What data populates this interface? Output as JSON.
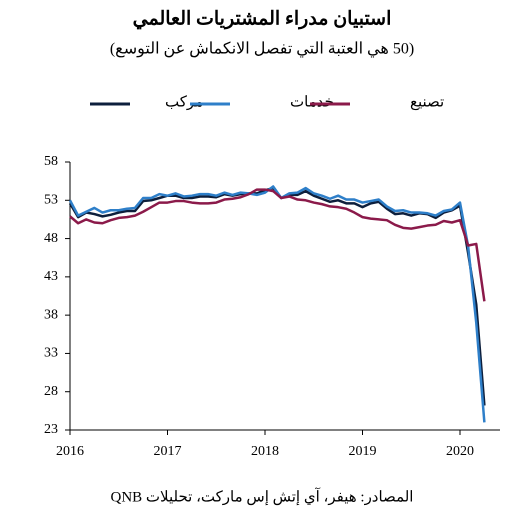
{
  "chart_data": {
    "type": "line",
    "title": "استبيان مدراء المشتريات العالمي",
    "subtitle": "(50 هي العتبة التي تفصل الانكماش عن التوسع)",
    "source": "المصادر: هيفر، آي إتش إس ماركت، تحليلات QNB",
    "categories": [
      "2016",
      null,
      null,
      null,
      null,
      null,
      null,
      null,
      null,
      null,
      null,
      null,
      "2017",
      null,
      null,
      null,
      null,
      null,
      null,
      null,
      null,
      null,
      null,
      null,
      "2018",
      null,
      null,
      null,
      null,
      null,
      null,
      null,
      null,
      null,
      null,
      null,
      "2019",
      null,
      null,
      null,
      null,
      null,
      null,
      null,
      null,
      null,
      null,
      null,
      "2020",
      null,
      null,
      null
    ],
    "series": [
      {
        "name": "مركب",
        "color": "#0d1f3c",
        "values": [
          52.6,
          50.8,
          51.4,
          51.2,
          50.9,
          51.1,
          51.4,
          51.6,
          51.6,
          52.9,
          53.0,
          53.3,
          53.6,
          53.6,
          53.3,
          53.3,
          53.5,
          53.5,
          53.4,
          53.8,
          53.6,
          53.8,
          53.9,
          53.9,
          54.3,
          54.6,
          53.3,
          53.7,
          53.7,
          54.2,
          53.6,
          53.2,
          52.8,
          53.0,
          52.6,
          52.6,
          52.1,
          52.6,
          52.8,
          51.9,
          51.2,
          51.3,
          51.0,
          51.3,
          51.2,
          50.7,
          51.4,
          51.7,
          52.3,
          46.1,
          39.4,
          26.2
        ]
      },
      {
        "name": "خدمات",
        "color": "#2e7fc9",
        "values": [
          53.0,
          51.0,
          51.5,
          52.0,
          51.4,
          51.7,
          51.7,
          51.9,
          52.0,
          53.3,
          53.3,
          53.8,
          53.6,
          53.9,
          53.5,
          53.6,
          53.8,
          53.8,
          53.6,
          54.0,
          53.7,
          54.0,
          53.9,
          53.7,
          54.0,
          54.8,
          53.3,
          53.9,
          54.0,
          54.6,
          53.9,
          53.6,
          53.2,
          53.6,
          53.1,
          53.1,
          52.7,
          52.9,
          53.1,
          52.2,
          51.6,
          51.7,
          51.4,
          51.4,
          51.3,
          51.0,
          51.6,
          51.8,
          52.7,
          47.0,
          37.0,
          24.0
        ]
      },
      {
        "name": "تصنيع",
        "color": "#8b1a4a",
        "values": [
          50.9,
          50.0,
          50.5,
          50.1,
          50.0,
          50.4,
          50.7,
          50.8,
          51.0,
          51.5,
          52.1,
          52.7,
          52.7,
          52.9,
          52.9,
          52.7,
          52.6,
          52.6,
          52.7,
          53.1,
          53.2,
          53.4,
          53.8,
          54.4,
          54.4,
          54.2,
          53.3,
          53.5,
          53.1,
          53.0,
          52.7,
          52.5,
          52.2,
          52.1,
          51.9,
          51.4,
          50.8,
          50.6,
          50.5,
          50.4,
          49.8,
          49.4,
          49.3,
          49.5,
          49.7,
          49.8,
          50.3,
          50.1,
          50.4,
          47.1,
          47.3,
          39.8
        ]
      }
    ],
    "ylim": [
      23,
      58
    ],
    "yticks": [
      23,
      28,
      33,
      38,
      43,
      48,
      53,
      58
    ],
    "grid": false
  }
}
